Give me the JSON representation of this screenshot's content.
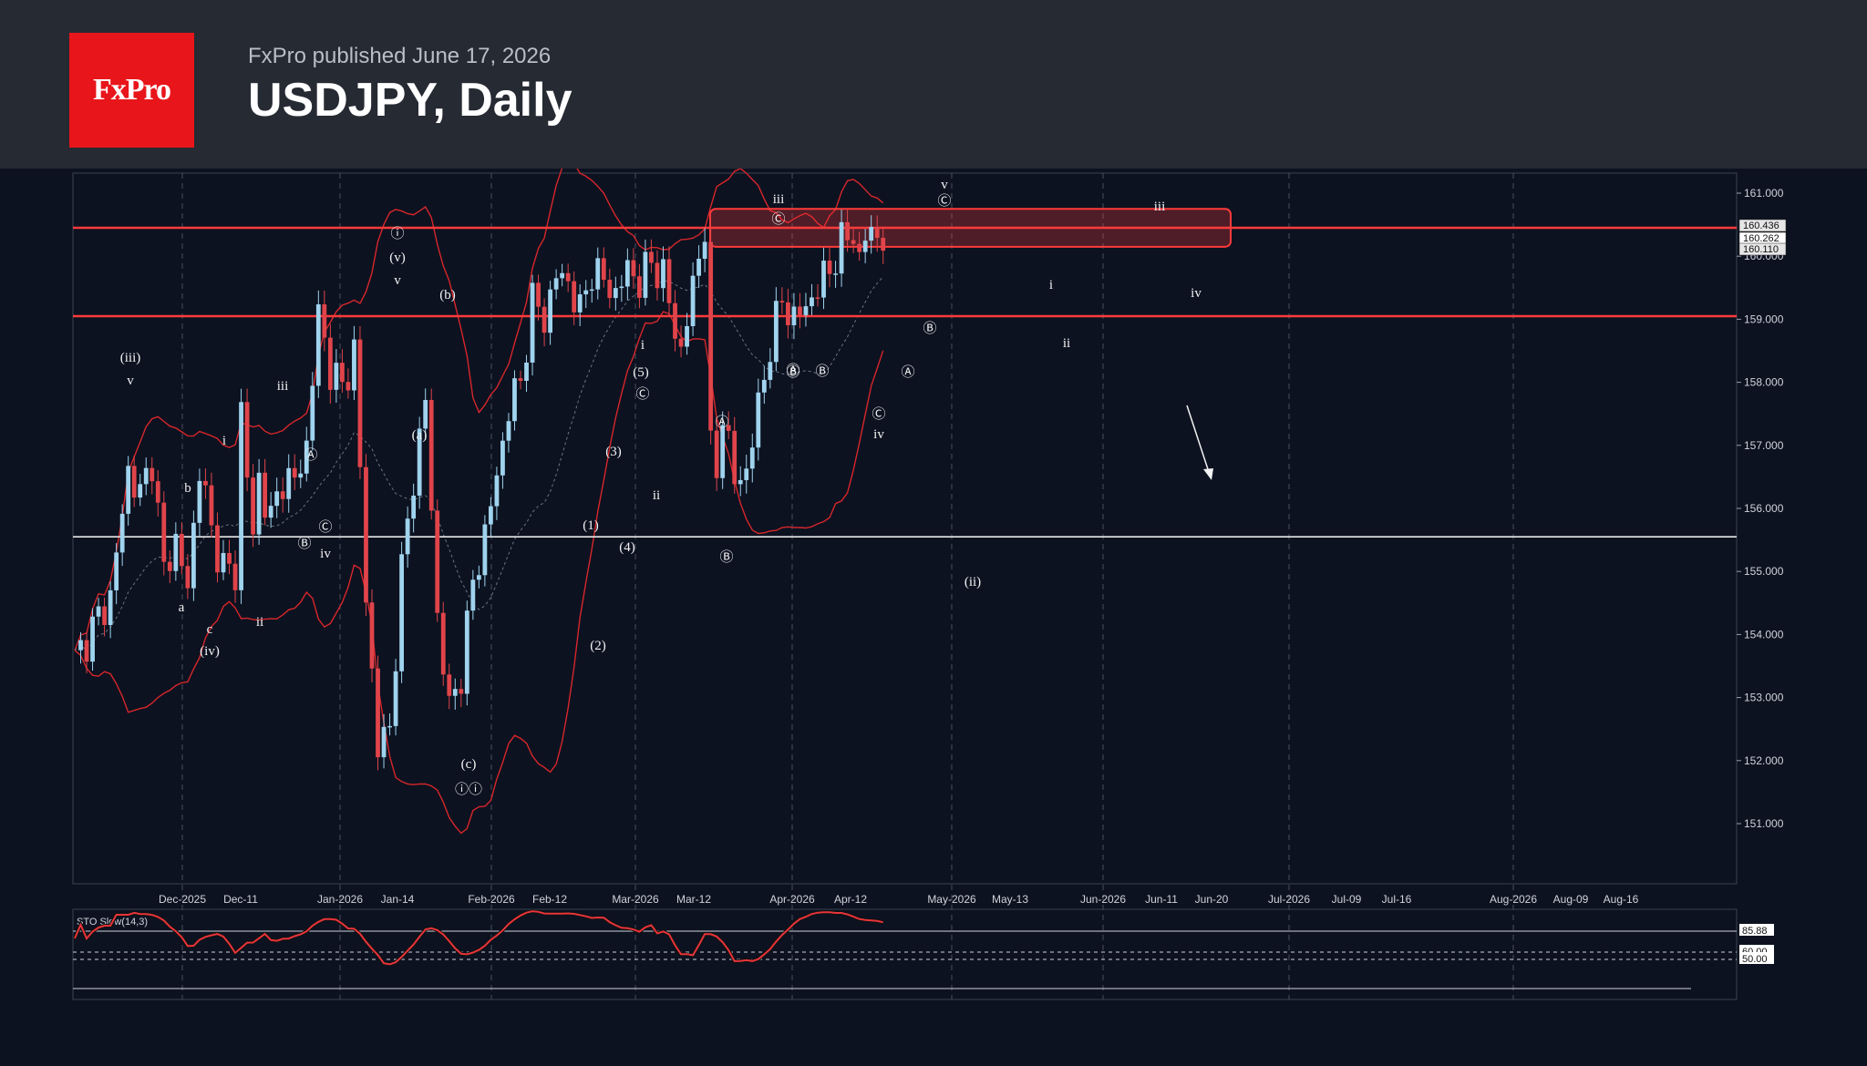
{
  "header": {
    "brand": "FxPro",
    "published": "FxPro published June 17, 2026",
    "title": "USDJPY, Daily"
  },
  "colors": {
    "background": "#0c1220",
    "header_bg": "#262a33",
    "brand_red": "#e8161b",
    "bull_candle": "#9fd3ee",
    "bear_candle": "#e0444a",
    "band_line": "#d7262b",
    "level_line": "#ff3b3b",
    "stochastic": "#e8343a"
  },
  "chart_data": {
    "type": "candlestick",
    "symbol": "USDJPY",
    "timeframe": "Daily",
    "y_ticks": [
      161.0,
      160.0,
      159.0,
      158.0,
      157.0,
      156.0,
      155.0,
      154.0,
      153.0,
      152.0,
      151.0
    ],
    "y_tick_labels": [
      "161.000",
      "160.000",
      "159.000",
      "158.000",
      "157.000",
      "156.000",
      "155.000",
      "154.000",
      "153.000",
      "152.000",
      "151.000"
    ],
    "ylim": [
      150.0,
      161.3
    ],
    "x_labels": [
      "Dec-2025",
      "Dec-11",
      "Jan-2026",
      "Jan-14",
      "Feb-2026",
      "Feb-12",
      "Mar-2026",
      "Mar-12",
      "Apr-2026",
      "Apr-12",
      "May-2026",
      "May-13",
      "Jun-2026",
      "Jun-11",
      "Jun-20",
      "Jul-2026",
      "Jul-09",
      "Jul-16",
      "Aug-2026",
      "Aug-09",
      "Aug-16"
    ],
    "price_labels": [
      "160.436",
      "160.262",
      "160.110"
    ],
    "horizontal_levels": [
      160.45,
      159.05,
      155.55
    ],
    "resistance_zone": [
      160.15,
      160.75
    ],
    "price_path": [
      [
        0,
        153.6
      ],
      [
        6,
        154.6
      ],
      [
        9,
        156.6
      ],
      [
        11,
        156.2
      ],
      [
        13,
        156.8
      ],
      [
        15,
        155.0
      ],
      [
        17,
        155.5
      ],
      [
        19,
        154.7
      ],
      [
        21,
        156.7
      ],
      [
        23,
        155.6
      ],
      [
        25,
        155.1
      ],
      [
        27,
        154.9
      ],
      [
        28,
        157.6
      ],
      [
        30,
        155.5
      ],
      [
        31,
        156.5
      ],
      [
        33,
        155.8
      ],
      [
        35,
        156.5
      ],
      [
        37,
        156.4
      ],
      [
        39,
        157.0
      ],
      [
        41,
        159.1
      ],
      [
        43,
        158.2
      ],
      [
        45,
        157.9
      ],
      [
        47,
        158.5
      ],
      [
        48,
        156.6
      ],
      [
        49,
        154.6
      ],
      [
        51,
        152.2
      ],
      [
        53,
        152.5
      ],
      [
        55,
        155.0
      ],
      [
        57,
        156.5
      ],
      [
        59,
        157.7
      ],
      [
        61,
        154.3
      ],
      [
        63,
        152.8
      ],
      [
        65,
        153.4
      ],
      [
        67,
        154.8
      ],
      [
        69,
        155.6
      ],
      [
        71,
        156.5
      ],
      [
        73,
        157.6
      ],
      [
        75,
        158.0
      ],
      [
        77,
        159.3
      ],
      [
        79,
        159.0
      ],
      [
        81,
        159.7
      ],
      [
        83,
        159.6
      ],
      [
        85,
        159.1
      ],
      [
        87,
        159.8
      ],
      [
        89,
        159.6
      ],
      [
        91,
        159.4
      ],
      [
        93,
        159.8
      ],
      [
        95,
        159.6
      ],
      [
        97,
        159.9
      ],
      [
        99,
        159.7
      ],
      [
        101,
        158.8
      ],
      [
        102,
        158.5
      ],
      [
        104,
        159.5
      ],
      [
        106,
        160.5
      ],
      [
        107,
        156.9
      ],
      [
        108,
        156.5
      ],
      [
        109,
        157.6
      ],
      [
        111,
        156.4
      ],
      [
        113,
        156.6
      ],
      [
        115,
        157.6
      ],
      [
        117,
        158.6
      ],
      [
        119,
        159.3
      ],
      [
        121,
        159.0
      ],
      [
        123,
        159.2
      ],
      [
        125,
        159.5
      ],
      [
        127,
        159.8
      ],
      [
        129,
        160.2
      ],
      [
        131,
        160.4
      ],
      [
        132,
        159.9
      ],
      [
        133,
        160.3
      ],
      [
        134,
        160.4
      ],
      [
        136,
        160.26
      ]
    ],
    "indicator": {
      "name": "STO Slow(14,3)",
      "levels": [
        85.88,
        60.0,
        50.0
      ],
      "level_labels": [
        "85.88",
        "60.00",
        "50.00"
      ]
    },
    "wave_labels": [
      "(iii)",
      "v",
      "b",
      "a",
      "c",
      "(iv)",
      "i",
      "ii",
      "iii",
      "Ⓐ",
      "Ⓑ",
      "Ⓒ",
      "iv",
      "ⓘ",
      "(v)",
      "(a)",
      "(b)",
      "(c)",
      "ⓘⓘ",
      "(1)",
      "(2)",
      "(3)",
      "(4)",
      "(5)",
      "(ii)"
    ]
  }
}
